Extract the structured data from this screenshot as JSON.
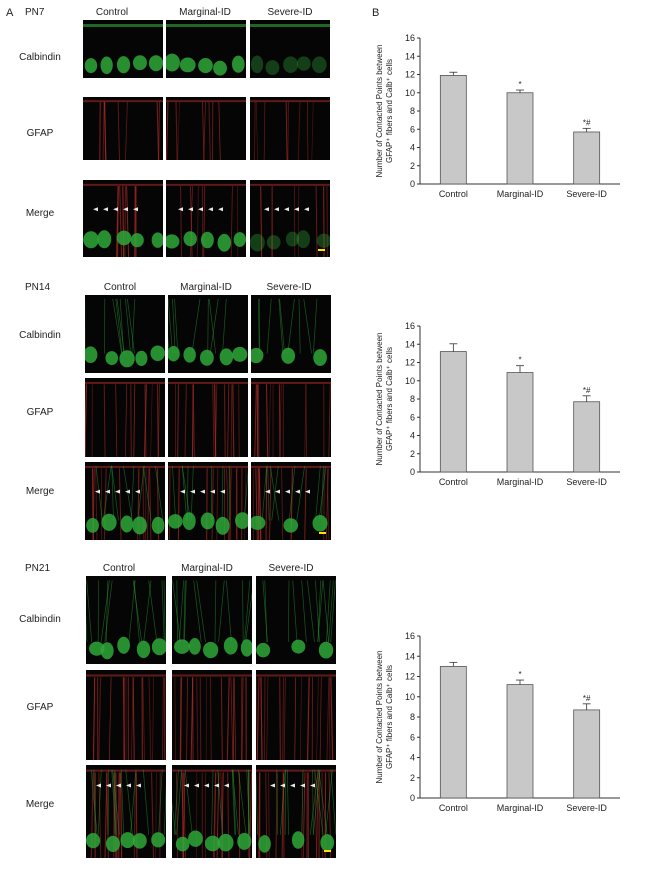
{
  "panel_a_label": "A",
  "panel_b_label": "B",
  "columns": [
    "Control",
    "Marginal-ID",
    "Severe-ID"
  ],
  "rows": [
    "Calbindin",
    "GFAP",
    "Merge"
  ],
  "stages": [
    "PN7",
    "PN14",
    "PN21"
  ],
  "colors": {
    "bar_fill": "#c8c8c8",
    "bar_stroke": "#555555",
    "calbindin": "#2fa83a",
    "gfap": "#c0302a",
    "merge_arrow": "#ffffff",
    "scale_bar": "#ffe000"
  },
  "chart_data": [
    {
      "type": "bar",
      "stage": "PN7",
      "categories": [
        "Control",
        "Marginal-ID",
        "Severe-ID"
      ],
      "values": [
        11.9,
        10.0,
        5.7
      ],
      "errors": [
        0.35,
        0.3,
        0.4
      ],
      "annotations": [
        "",
        "*",
        "*#"
      ],
      "ylabel_line1": "Number of Contacted Points between",
      "ylabel_line2": "GFAP⁺ fibers and Calb⁺ cells",
      "ylim": [
        0,
        16
      ],
      "yticks": [
        0,
        2,
        4,
        6,
        8,
        10,
        12,
        14,
        16
      ]
    },
    {
      "type": "bar",
      "stage": "PN14",
      "categories": [
        "Control",
        "Marginal-ID",
        "Severe-ID"
      ],
      "values": [
        13.2,
        10.9,
        7.7
      ],
      "errors": [
        0.85,
        0.75,
        0.65
      ],
      "annotations": [
        "",
        "*",
        "*#"
      ],
      "ylabel_line1": "Number of Contacted Points between",
      "ylabel_line2": "GFAP⁺ fibers and Calb⁺ cells",
      "ylim": [
        0,
        16
      ],
      "yticks": [
        0,
        2,
        4,
        6,
        8,
        10,
        12,
        14,
        16
      ]
    },
    {
      "type": "bar",
      "stage": "PN21",
      "categories": [
        "Control",
        "Marginal-ID",
        "Severe-ID"
      ],
      "values": [
        13.0,
        11.2,
        8.7
      ],
      "errors": [
        0.4,
        0.45,
        0.6
      ],
      "annotations": [
        "",
        "*",
        "*#"
      ],
      "ylabel_line1": "Number of Contacted Points between",
      "ylabel_line2": "GFAP⁺ fibers and Calb⁺ cells",
      "ylim": [
        0,
        16
      ],
      "yticks": [
        0,
        2,
        4,
        6,
        8,
        10,
        12,
        14,
        16
      ]
    }
  ]
}
